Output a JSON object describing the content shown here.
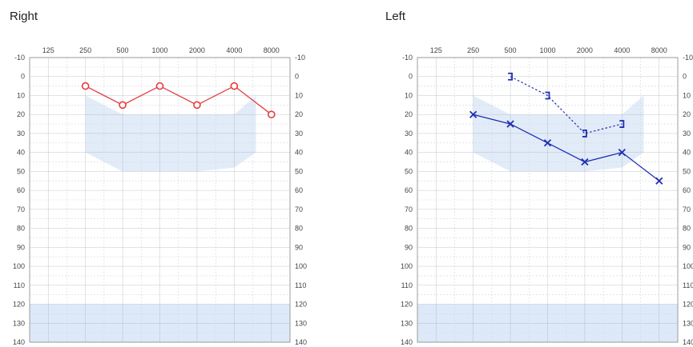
{
  "panels": {
    "right": {
      "title": "Right"
    },
    "left": {
      "title": "Left"
    }
  },
  "colors": {
    "right_series": "#e83a3a",
    "left_series": "#1f2fb0",
    "normal_region": "#dde9f8",
    "grid_major": "#9aa3ad",
    "grid_minor": "#d3d7dc"
  },
  "chart_data": [
    {
      "type": "line",
      "title": "Right",
      "x_ticks": [
        "125",
        "250",
        "500",
        "1000",
        "2000",
        "4000",
        "8000"
      ],
      "y_ticks": [
        "-10",
        "0",
        "10",
        "20",
        "30",
        "40",
        "50",
        "60",
        "70",
        "80",
        "90",
        "100",
        "110",
        "120",
        "130",
        "140"
      ],
      "ylim": [
        -10,
        140
      ],
      "y_inverted": true,
      "x_scale": "log2",
      "x_unit": "Hz",
      "y_unit": "dB HL",
      "grid": true,
      "speech_banana": {
        "upper": [
          [
            250,
            10
          ],
          [
            500,
            20
          ],
          [
            1000,
            20
          ],
          [
            2000,
            20
          ],
          [
            4000,
            20
          ],
          [
            6000,
            10
          ]
        ],
        "lower": [
          [
            250,
            40
          ],
          [
            500,
            50
          ],
          [
            1000,
            50
          ],
          [
            2000,
            50
          ],
          [
            4000,
            48
          ],
          [
            6000,
            40
          ]
        ]
      },
      "series": [
        {
          "marker": "circle",
          "line": "solid",
          "color": "#e83a3a",
          "x": [
            250,
            500,
            1000,
            2000,
            4000,
            8000
          ],
          "y": [
            5,
            15,
            5,
            15,
            5,
            20
          ]
        }
      ]
    },
    {
      "type": "line",
      "title": "Left",
      "x_ticks": [
        "125",
        "250",
        "500",
        "1000",
        "2000",
        "4000",
        "8000"
      ],
      "y_ticks": [
        "-10",
        "0",
        "10",
        "20",
        "30",
        "40",
        "50",
        "60",
        "70",
        "80",
        "90",
        "100",
        "110",
        "120",
        "130",
        "140"
      ],
      "ylim": [
        -10,
        140
      ],
      "y_inverted": true,
      "x_scale": "log2",
      "x_unit": "Hz",
      "y_unit": "dB HL",
      "grid": true,
      "speech_banana": {
        "upper": [
          [
            250,
            10
          ],
          [
            500,
            20
          ],
          [
            1000,
            20
          ],
          [
            2000,
            20
          ],
          [
            4000,
            20
          ],
          [
            6000,
            10
          ]
        ],
        "lower": [
          [
            250,
            40
          ],
          [
            500,
            50
          ],
          [
            1000,
            50
          ],
          [
            2000,
            50
          ],
          [
            4000,
            48
          ],
          [
            6000,
            40
          ]
        ]
      },
      "series": [
        {
          "marker": "x",
          "line": "solid",
          "color": "#1f2fb0",
          "x": [
            250,
            500,
            1000,
            2000,
            4000,
            8000
          ],
          "y": [
            20,
            25,
            35,
            45,
            40,
            55
          ]
        },
        {
          "marker": "bracket",
          "line": "dashed",
          "color": "#1f2fb0",
          "x": [
            500,
            1000,
            2000,
            4000
          ],
          "y": [
            0,
            10,
            30,
            25
          ]
        }
      ]
    }
  ]
}
